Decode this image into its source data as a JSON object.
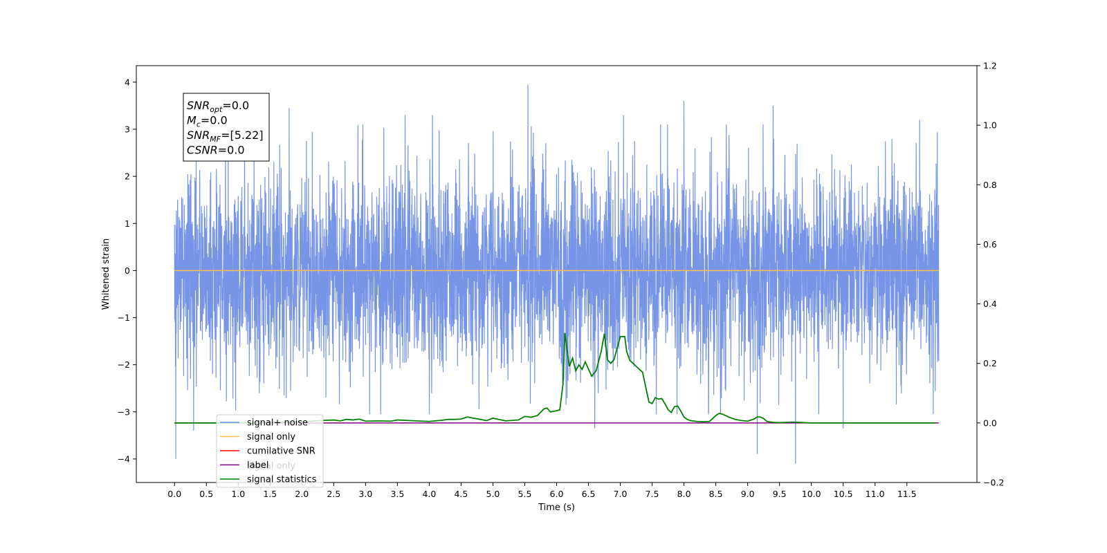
{
  "chart_data": {
    "type": "line",
    "xlabel": "Time (s)",
    "ylabel": "Whitened strain",
    "xlim": [
      -0.6,
      12.6
    ],
    "ylim": [
      -4.5,
      4.35
    ],
    "ylim_right": [
      -0.2,
      1.2
    ],
    "x_ticks": [
      "0.0",
      "0.5",
      "1.0",
      "1.5",
      "2.0",
      "2.5",
      "3.0",
      "3.5",
      "4.0",
      "4.5",
      "5.0",
      "5.5",
      "6.0",
      "6.5",
      "7.0",
      "7.5",
      "8.0",
      "8.5",
      "9.0",
      "9.5",
      "10.0",
      "10.5",
      "11.0",
      "11.5"
    ],
    "y_ticks_left": [
      "4",
      "3",
      "2",
      "1",
      "0",
      "−1",
      "−2",
      "−3",
      "−4"
    ],
    "y_ticks_right": [
      "1.2",
      "1.0",
      "0.8",
      "0.6",
      "0.4",
      "0.2",
      "0.0",
      "−0.2"
    ],
    "annotation_box": {
      "lines": [
        {
          "sym": "SNR",
          "sub": "opt",
          "val": "=0.0"
        },
        {
          "sym": "M",
          "sub": "c",
          "val": "=0.0"
        },
        {
          "sym": "SNR",
          "sub": "MF",
          "val": "=[5.22]"
        },
        {
          "sym": "CSNR",
          "sub": "",
          "val": "=0.0"
        }
      ]
    },
    "legend": {
      "position": "lower-left",
      "entries": [
        {
          "label": "signal+ noise",
          "color": "#6f8fe6"
        },
        {
          "label": "signal only",
          "color": "#ffbf50"
        },
        {
          "label": "cumilative SNR",
          "color": "#ff0000"
        },
        {
          "label": "label",
          "color": "#800080"
        },
        {
          "label": "signal statistics",
          "color": "#008000"
        }
      ],
      "occluded_text": "signal only"
    },
    "series": [
      {
        "name": "signal+ noise",
        "axis": "left",
        "color": "#6f8fe6",
        "x_range": [
          0.0,
          12.0
        ],
        "mean": 0.0,
        "std": 1.0,
        "notable_peaks": [
          [
            5.55,
            3.95
          ],
          [
            1.1,
            3.25
          ],
          [
            1.8,
            3.45
          ],
          [
            3.62,
            3.3
          ],
          [
            4.05,
            3.3
          ],
          [
            7.05,
            3.3
          ],
          [
            8.0,
            3.6
          ],
          [
            9.4,
            3.5
          ],
          [
            11.7,
            3.2
          ],
          [
            9.75,
            -4.1
          ],
          [
            0.02,
            -4.0
          ],
          [
            9.15,
            -3.9
          ],
          [
            6.6,
            -3.35
          ],
          [
            10.5,
            -3.35
          ],
          [
            0.3,
            -3.4
          ],
          [
            4.0,
            -3.05
          ]
        ]
      },
      {
        "name": "signal only",
        "axis": "left",
        "color": "#ffbf50",
        "x": [
          0.0,
          12.0
        ],
        "values": [
          0.0,
          0.0
        ]
      },
      {
        "name": "label",
        "axis": "right",
        "color": "#800080",
        "x": [
          0.0,
          12.0
        ],
        "values": [
          0.0,
          0.0
        ]
      },
      {
        "name": "signal statistics",
        "axis": "right",
        "color": "#008000",
        "x": [
          0.0,
          0.5,
          1.0,
          1.5,
          2.0,
          2.3,
          2.5,
          2.6,
          2.7,
          2.8,
          2.9,
          3.0,
          3.2,
          3.4,
          3.5,
          3.8,
          4.0,
          4.2,
          4.3,
          4.4,
          4.5,
          4.6,
          4.8,
          4.9,
          5.0,
          5.2,
          5.4,
          5.5,
          5.6,
          5.7,
          5.8,
          5.85,
          5.9,
          6.0,
          6.05,
          6.1,
          6.13,
          6.2,
          6.25,
          6.3,
          6.35,
          6.4,
          6.45,
          6.55,
          6.62,
          6.7,
          6.75,
          6.8,
          6.85,
          6.9,
          7.0,
          7.07,
          7.1,
          7.15,
          7.2,
          7.25,
          7.3,
          7.35,
          7.4,
          7.45,
          7.5,
          7.55,
          7.6,
          7.65,
          7.7,
          7.75,
          7.8,
          7.85,
          7.9,
          7.95,
          8.0,
          8.05,
          8.1,
          8.2,
          8.3,
          8.4,
          8.5,
          8.55,
          8.6,
          8.7,
          8.8,
          8.9,
          9.0,
          9.1,
          9.15,
          9.2,
          9.25,
          9.3,
          9.4,
          9.5,
          9.7,
          10.0,
          10.5,
          11.0,
          11.5,
          11.95
        ],
        "values": [
          0.0,
          0.0,
          0.0,
          0.002,
          0.004,
          0.008,
          0.01,
          0.007,
          0.012,
          0.01,
          0.013,
          0.006,
          0.007,
          0.006,
          0.01,
          0.007,
          0.005,
          0.009,
          0.012,
          0.012,
          0.013,
          0.02,
          0.012,
          0.008,
          0.016,
          0.007,
          0.01,
          0.022,
          0.019,
          0.025,
          0.047,
          0.05,
          0.037,
          0.041,
          0.044,
          0.13,
          0.302,
          0.19,
          0.218,
          0.175,
          0.195,
          0.18,
          0.205,
          0.157,
          0.175,
          0.24,
          0.3,
          0.212,
          0.2,
          0.212,
          0.29,
          0.29,
          0.24,
          0.21,
          0.2,
          0.19,
          0.18,
          0.17,
          0.12,
          0.07,
          0.065,
          0.085,
          0.08,
          0.082,
          0.065,
          0.045,
          0.035,
          0.055,
          0.057,
          0.04,
          0.02,
          0.012,
          0.008,
          0.005,
          0.004,
          0.005,
          0.025,
          0.032,
          0.03,
          0.02,
          0.012,
          0.008,
          0.006,
          0.013,
          0.02,
          0.02,
          0.015,
          0.005,
          0.002,
          0.001,
          0.003,
          0.0,
          0.0,
          0.0,
          0.0,
          0.0
        ]
      }
    ]
  }
}
